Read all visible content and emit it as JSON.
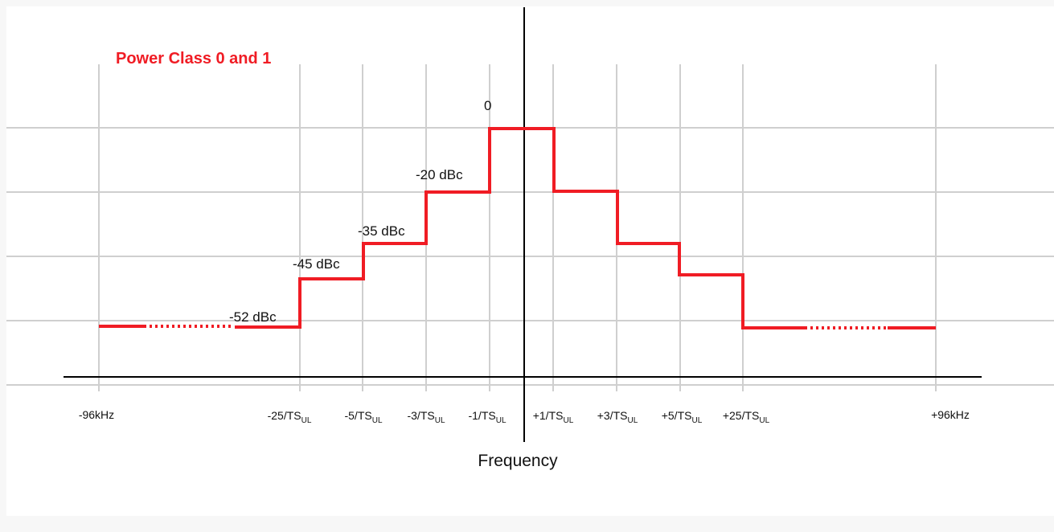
{
  "diagram": {
    "title": "Power Class 0 and 1",
    "xlabel": "Frequency",
    "colors": {
      "mask": "#f01c24",
      "grid": "#cfcfcf",
      "axis": "#000000"
    },
    "levels": [
      {
        "id": "peak",
        "label": "0"
      },
      {
        "id": "l20",
        "label": "-20 dBc"
      },
      {
        "id": "l35",
        "label": "-35 dBc"
      },
      {
        "id": "l45",
        "label": "-45 dBc"
      },
      {
        "id": "l52",
        "label": "-52 dBc"
      }
    ],
    "ticks": [
      {
        "id": "m96k",
        "text": "-96kHz",
        "sub": ""
      },
      {
        "id": "m25",
        "text": "-25/TS",
        "sub": "UL"
      },
      {
        "id": "m5",
        "text": "-5/TS",
        "sub": "UL"
      },
      {
        "id": "m3",
        "text": "-3/TS",
        "sub": "UL"
      },
      {
        "id": "m1",
        "text": "-1/TS",
        "sub": "UL"
      },
      {
        "id": "p1",
        "text": "+1/TS",
        "sub": "UL"
      },
      {
        "id": "p3",
        "text": "+3/TS",
        "sub": "UL"
      },
      {
        "id": "p5",
        "text": "+5/TS",
        "sub": "UL"
      },
      {
        "id": "p25",
        "text": "+25/TS",
        "sub": "UL"
      },
      {
        "id": "p96k",
        "text": "+96kHz",
        "sub": ""
      }
    ]
  }
}
